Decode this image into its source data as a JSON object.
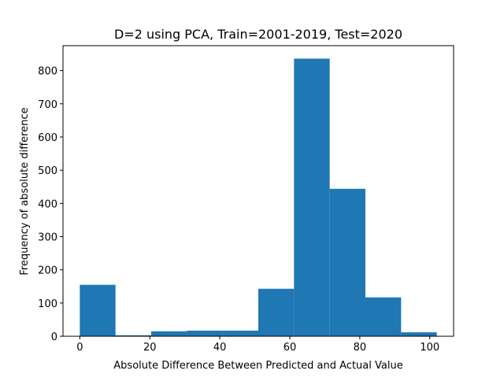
{
  "chart_data": {
    "type": "bar",
    "title": "D=2 using PCA, Train=2001-2019, Test=2020",
    "xlabel": "Absolute Difference Between Predicted and Actual Value",
    "ylabel": "Frequency of absolute difference",
    "xlim": [
      -4.8,
      106.8
    ],
    "ylim": [
      0,
      875
    ],
    "xticks": [
      0,
      20,
      40,
      60,
      80,
      100
    ],
    "yticks": [
      0,
      100,
      200,
      300,
      400,
      500,
      600,
      700,
      800
    ],
    "bar_color": "#1f77b4",
    "bins": [
      {
        "x0": 0.0,
        "x1": 10.2,
        "value": 155
      },
      {
        "x0": 10.2,
        "x1": 20.4,
        "value": 3
      },
      {
        "x0": 20.4,
        "x1": 30.6,
        "value": 15
      },
      {
        "x0": 30.6,
        "x1": 40.8,
        "value": 17
      },
      {
        "x0": 40.8,
        "x1": 51.0,
        "value": 17
      },
      {
        "x0": 51.0,
        "x1": 61.2,
        "value": 143
      },
      {
        "x0": 61.2,
        "x1": 71.4,
        "value": 836
      },
      {
        "x0": 71.4,
        "x1": 81.6,
        "value": 444
      },
      {
        "x0": 81.6,
        "x1": 91.8,
        "value": 117
      },
      {
        "x0": 91.8,
        "x1": 102.0,
        "value": 12
      }
    ]
  }
}
